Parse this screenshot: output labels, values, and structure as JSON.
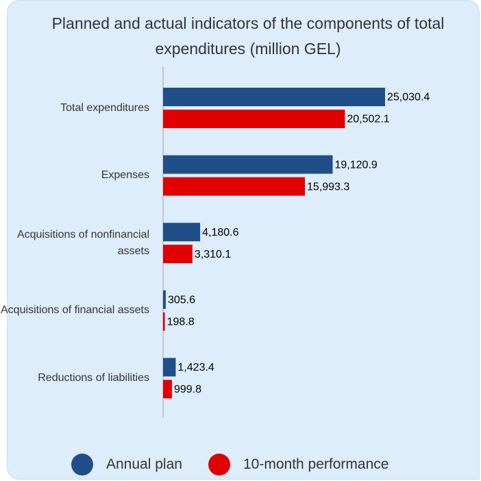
{
  "chart_data": {
    "type": "hbar",
    "title": "Planned and actual indicators of the components of total expenditures (million GEL)",
    "categories": [
      "Total expenditures",
      "Expenses",
      "Acquisitions of nonfinancial assets",
      "Acquisitions of financial assets",
      "Reductions of liabilities"
    ],
    "series": [
      {
        "name": "Annual plan",
        "color": "#1f4e89",
        "values": [
          25030.4,
          19120.9,
          4180.6,
          305.6,
          1423.4
        ],
        "value_labels": [
          "25,030.4",
          "19,120.9",
          "4,180.6",
          "305.6",
          "1,423.4"
        ]
      },
      {
        "name": "10-month performance",
        "color": "#e00000",
        "values": [
          20502.1,
          15993.3,
          3310.1,
          198.8,
          999.8
        ],
        "value_labels": [
          "20,502.1",
          "15,993.3",
          "3,310.1",
          "198.8",
          "999.8"
        ]
      }
    ],
    "legend": "bottom"
  }
}
